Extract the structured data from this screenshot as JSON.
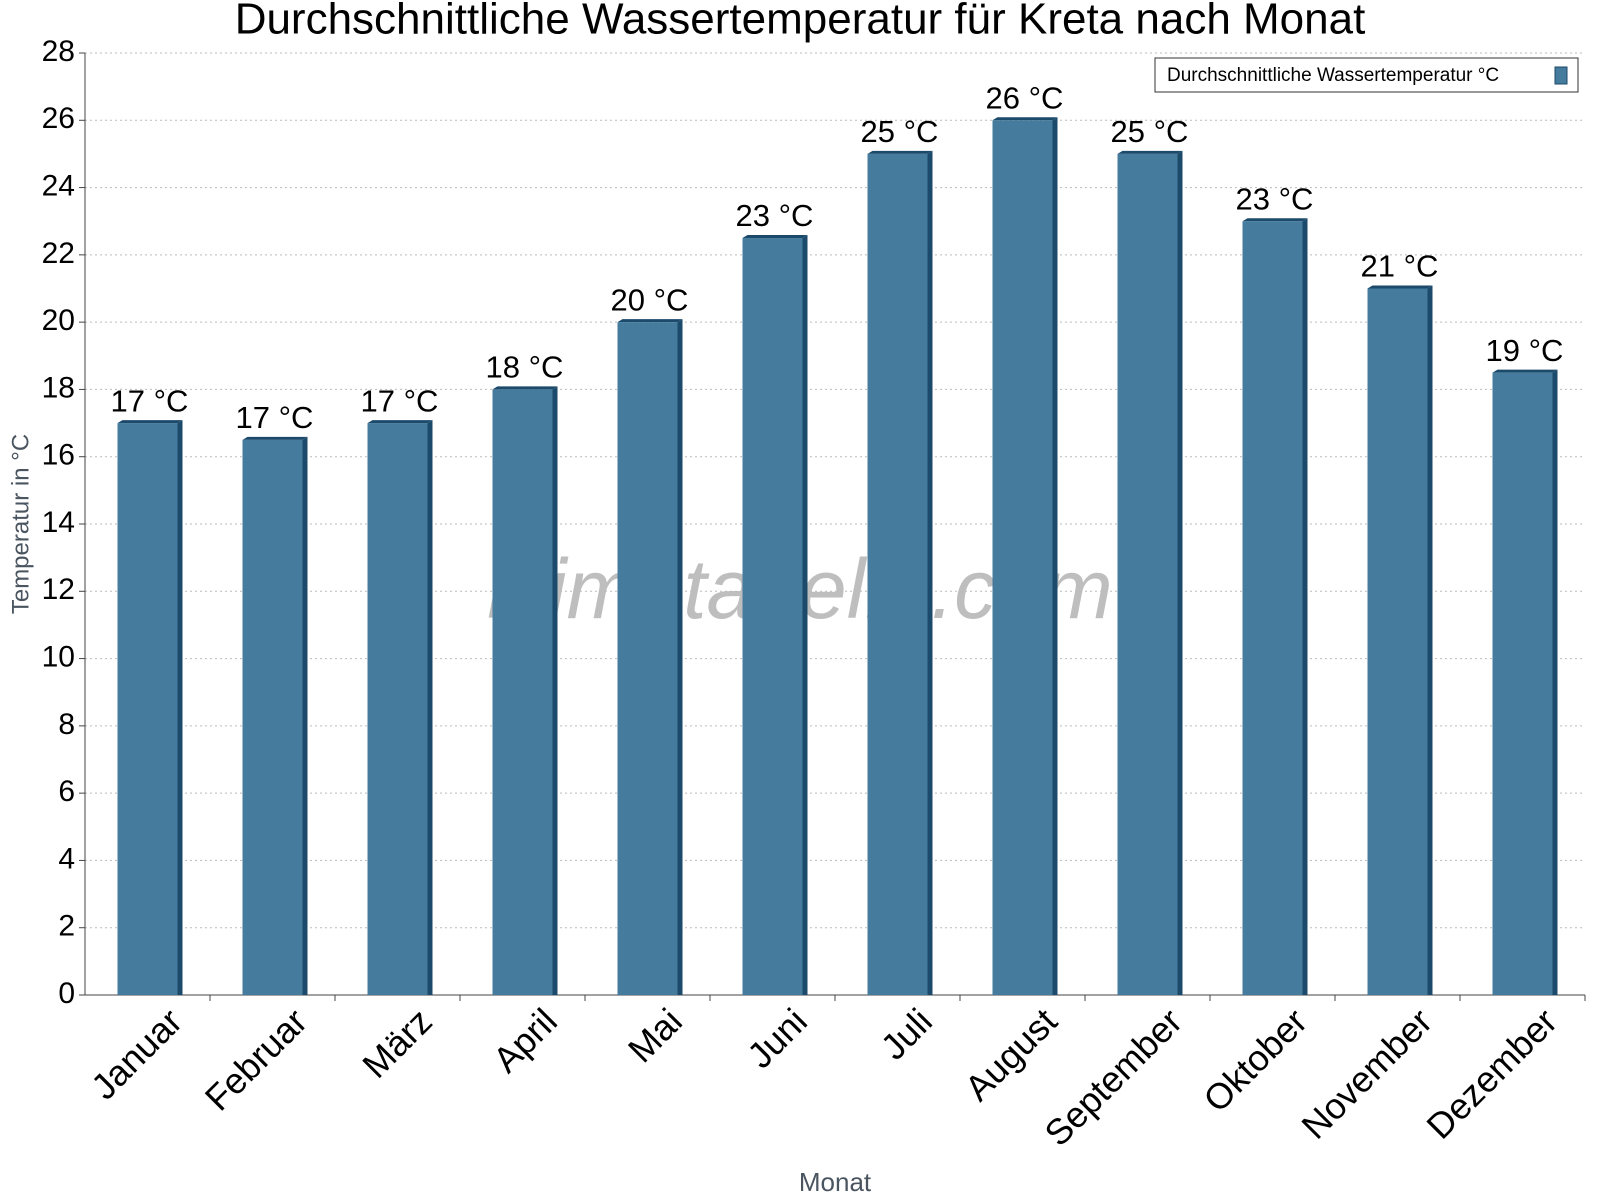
{
  "chart_data": {
    "type": "bar",
    "title": "Durchschnittliche Wassertemperatur für Kreta nach Monat",
    "x_label": "Monat",
    "y_label": "Temperatur in °C",
    "watermark": "klimatabelle.com",
    "categories": [
      "Januar",
      "Februar",
      "März",
      "April",
      "Mai",
      "Juni",
      "Juli",
      "August",
      "September",
      "Oktober",
      "November",
      "Dezember"
    ],
    "series": [
      {
        "name": "Durchschnittliche Wassertemperatur °C",
        "color": "#457b9d",
        "values": [
          17,
          16.5,
          17,
          18,
          20,
          22.5,
          25,
          26,
          25,
          23,
          21,
          18.5
        ],
        "value_labels": [
          "17 °C",
          "17 °C",
          "17 °C",
          "18 °C",
          "20 °C",
          "23 °C",
          "25 °C",
          "26 °C",
          "25 °C",
          "23 °C",
          "21 °C",
          "19 °C"
        ]
      }
    ],
    "ylim": [
      0,
      28
    ],
    "yticks": [
      0,
      2,
      4,
      6,
      8,
      10,
      12,
      14,
      16,
      18,
      20,
      22,
      24,
      26,
      28
    ],
    "grid": true,
    "legend": "top-right"
  }
}
